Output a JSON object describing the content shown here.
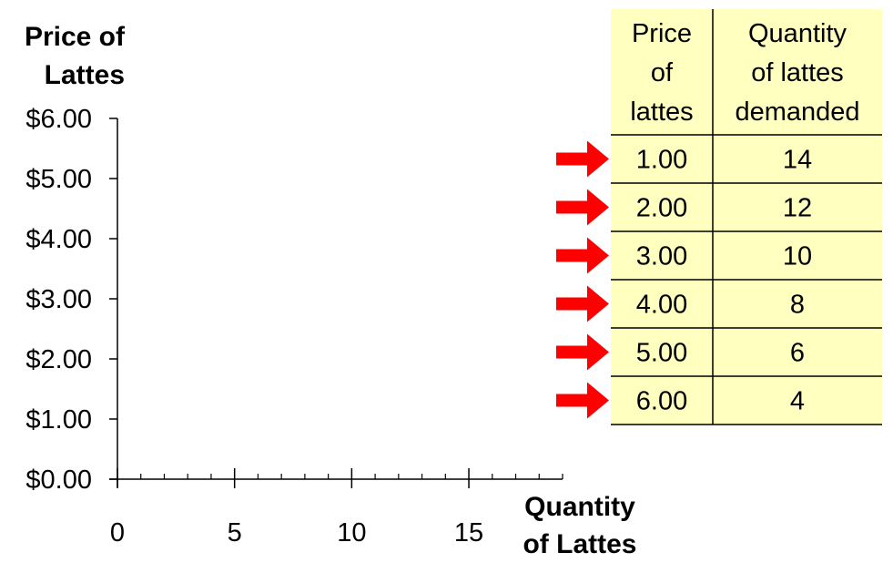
{
  "chart_data": {
    "type": "line",
    "ylabel_lines": [
      "Price of",
      "Lattes"
    ],
    "xlabel_lines": [
      "Quantity",
      "of Lattes"
    ],
    "y_ticks": [
      "$6.00",
      "$5.00",
      "$4.00",
      "$3.00",
      "$2.00",
      "$1.00",
      "$0.00"
    ],
    "y_tick_values": [
      6,
      5,
      4,
      3,
      2,
      1,
      0
    ],
    "x_ticks": [
      "0",
      "5",
      "10",
      "15"
    ],
    "x_tick_values": [
      0,
      5,
      10,
      15
    ],
    "xlim": [
      0,
      19
    ],
    "ylim": [
      0,
      6
    ],
    "x_minor_step": 1,
    "grid": false,
    "series": [],
    "table": {
      "header_col1": [
        "Price",
        "of",
        "lattes"
      ],
      "header_col2": [
        "Quantity",
        "of lattes",
        "demanded"
      ],
      "rows": [
        {
          "price": "1.00",
          "qty": "14"
        },
        {
          "price": "2.00",
          "qty": "12"
        },
        {
          "price": "3.00",
          "qty": "10"
        },
        {
          "price": "4.00",
          "qty": "8"
        },
        {
          "price": "5.00",
          "qty": "6"
        },
        {
          "price": "6.00",
          "qty": "4"
        }
      ]
    }
  },
  "colors": {
    "table_fill": "#FFFFC0",
    "arrow": "#FF0000",
    "axis": "#000000"
  }
}
